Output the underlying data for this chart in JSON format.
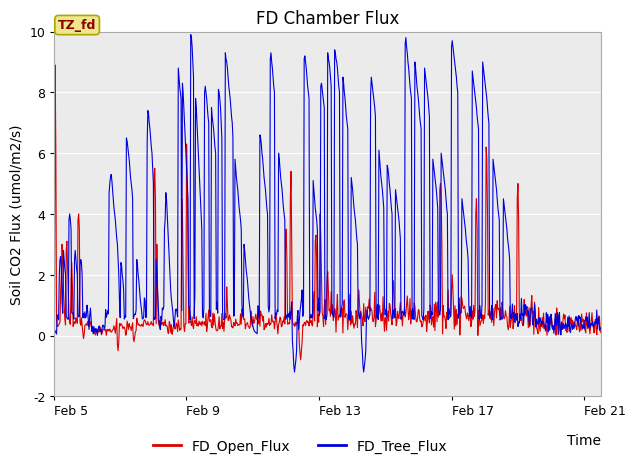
{
  "title": "FD Chamber Flux",
  "xlabel": "Time",
  "ylabel": "Soil CO2 Flux (umol/m2/s)",
  "ylim": [
    -2,
    10
  ],
  "start_date": "Feb 5",
  "x_ticks_labels": [
    "Feb 5",
    "Feb 9",
    "Feb 13",
    "Feb 17",
    "Feb 21"
  ],
  "x_ticks_days": [
    0,
    4,
    8,
    12,
    16
  ],
  "xlim": [
    0,
    16.5
  ],
  "bg_color": "#ebebeb",
  "fig_color": "#ffffff",
  "open_color": "#dd0000",
  "tree_color": "#0000dd",
  "tz_label": "TZ_fd",
  "tz_bg": "#f0e68c",
  "tz_text_color": "#8b0000",
  "tz_border": "#aaa800",
  "legend_open": "FD_Open_Flux",
  "legend_tree": "FD_Tree_Flux",
  "title_fontsize": 12,
  "axis_fontsize": 10,
  "tick_fontsize": 9,
  "legend_fontsize": 10,
  "grid_color": "#ffffff",
  "spine_color": "#aaaaaa"
}
